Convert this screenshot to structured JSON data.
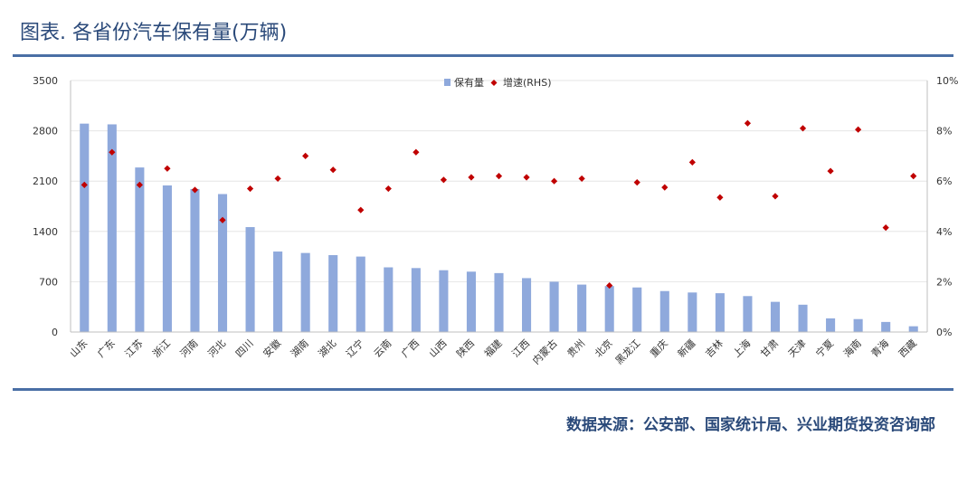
{
  "title": "图表. 各省份汽车保有量(万辆)",
  "source": "数据来源：公安部、国家统计局、兴业期货投资咨询部",
  "colors": {
    "bar": "#8fa9dc",
    "dot": "#c00000",
    "rule": "#4a6fa5",
    "title": "#2b4a7a"
  },
  "chart_data": {
    "type": "bar",
    "categories": [
      "山东",
      "广东",
      "江苏",
      "浙江",
      "河南",
      "河北",
      "四川",
      "安徽",
      "湖南",
      "湖北",
      "辽宁",
      "云南",
      "广西",
      "山西",
      "陕西",
      "福建",
      "江西",
      "内蒙古",
      "贵州",
      "北京",
      "黑龙江",
      "重庆",
      "新疆",
      "吉林",
      "上海",
      "甘肃",
      "天津",
      "宁夏",
      "海南",
      "青海",
      "西藏"
    ],
    "series": [
      {
        "name": "保有量",
        "type": "bar",
        "axis": "left",
        "values": [
          2900,
          2890,
          2290,
          2040,
          1990,
          1920,
          1460,
          1120,
          1100,
          1070,
          1050,
          900,
          890,
          860,
          840,
          820,
          750,
          700,
          660,
          640,
          620,
          570,
          550,
          540,
          500,
          420,
          380,
          190,
          180,
          140,
          80
        ]
      },
      {
        "name": "增速(RHS)",
        "type": "scatter",
        "axis": "right",
        "values": [
          5.85,
          7.15,
          5.85,
          6.5,
          5.65,
          4.45,
          5.7,
          6.1,
          7.0,
          6.45,
          4.85,
          5.7,
          7.15,
          6.05,
          6.15,
          6.2,
          6.15,
          6.0,
          6.1,
          1.85,
          5.95,
          5.75,
          6.75,
          5.35,
          8.3,
          5.4,
          8.1,
          6.4,
          8.05,
          4.15,
          6.2
        ]
      }
    ],
    "yaxis_left": {
      "min": 0,
      "max": 3500,
      "ticks": [
        "0",
        "700",
        "1400",
        "2100",
        "2800",
        "3500"
      ]
    },
    "yaxis_right": {
      "min": 0,
      "max": 10,
      "ticks": [
        "0%",
        "2%",
        "4%",
        "6%",
        "8%",
        "10%"
      ]
    },
    "grid": true,
    "legend_position": "top-center"
  }
}
